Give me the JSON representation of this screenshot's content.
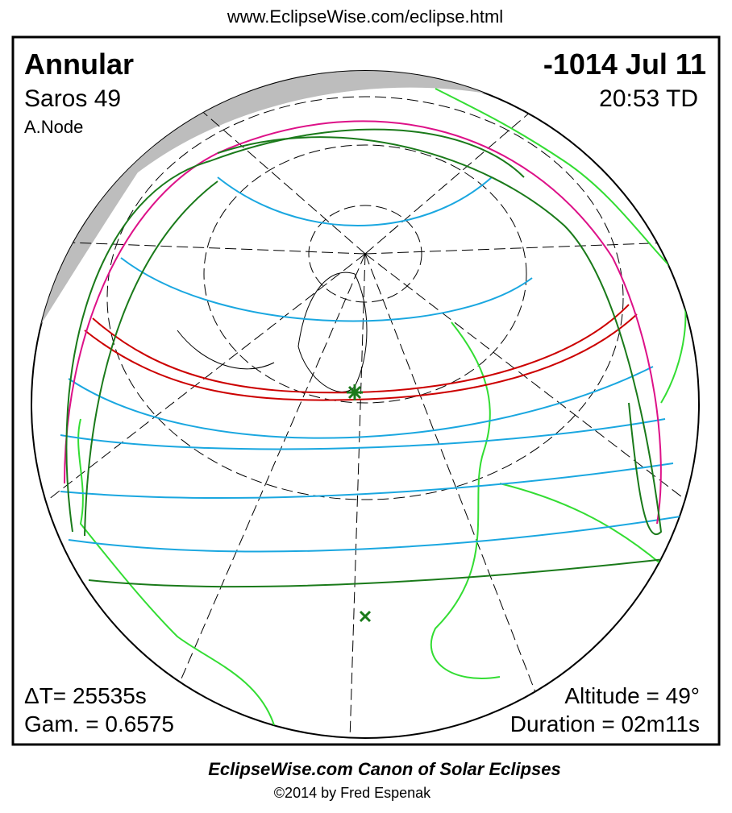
{
  "header": {
    "url": "www.EclipseWise.com/eclipse.html"
  },
  "eclipse": {
    "type": "Annular",
    "date": "-1014 Jul 11",
    "saros": "Saros  49",
    "time": "20:53 TD",
    "node": "A.Node",
    "delta_t": "ΔT=  25535s",
    "gamma": "Gam. = 0.6575",
    "altitude": "Altitude = 49°",
    "duration": "Duration = 02m11s"
  },
  "footer": {
    "title": "EclipseWise.com Canon of Solar Eclipses",
    "copyright": "©2014 by Fred Espenak"
  }
}
